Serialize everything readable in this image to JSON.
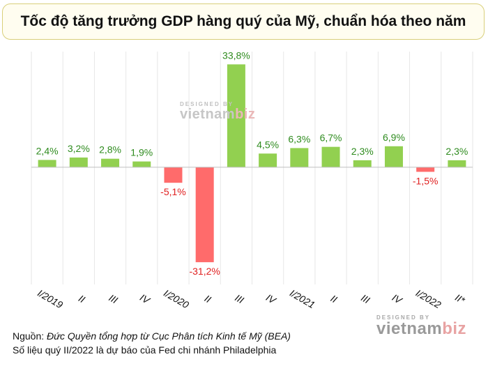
{
  "title": "Tốc độ tăng trưởng GDP hàng quý của Mỹ, chuẩn hóa theo năm",
  "watermark": {
    "designed_by": "DESIGNED BY",
    "brand_main": "vietnam",
    "brand_accent": "biz"
  },
  "source": {
    "prefix": "Nguồn: ",
    "italic": "Đức Quyền tổng hợp từ Cục Phân tích Kinh tế Mỹ (BEA)",
    "note": "Số liệu quý II/2022 là dự báo của Fed chi nhánh Philadelphia"
  },
  "colors": {
    "positive": "#92d050",
    "negative": "#ff6b6b",
    "positive_label": "#2e8b1e",
    "negative_label": "#e02020"
  },
  "chart_data": {
    "type": "bar",
    "categories": [
      "I/2019",
      "II",
      "III",
      "IV",
      "I/2020",
      "II",
      "III",
      "IV",
      "I/2021",
      "II",
      "III",
      "IV",
      "I/2022",
      "II*"
    ],
    "values": [
      2.4,
      3.2,
      2.8,
      1.9,
      -5.1,
      -31.2,
      33.8,
      4.5,
      6.3,
      6.7,
      2.3,
      6.9,
      -1.5,
      2.3
    ],
    "value_labels": [
      "2,4%",
      "3,2%",
      "2,8%",
      "1,9%",
      "-5,1%",
      "-31,2%",
      "33,8%",
      "4,5%",
      "6,3%",
      "6,7%",
      "2,3%",
      "6,9%",
      "-1,5%",
      "2,3%"
    ],
    "unit": "%",
    "ylim": [
      -38.5,
      38.0
    ],
    "grid": "vertical",
    "title": "Tốc độ tăng trưởng GDP hàng quý của Mỹ, chuẩn hóa theo năm"
  }
}
